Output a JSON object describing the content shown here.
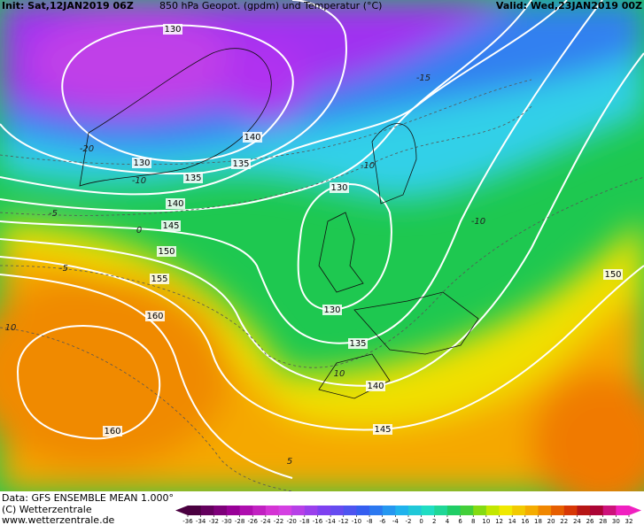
{
  "header": {
    "init": "Init: Sat,12JAN2019 06Z",
    "title": "850 hPa Geopot. (gpdm) und Temperatur (°C)",
    "valid": "Valid: Wed,23JAN2019 00Z"
  },
  "footer": {
    "data": "Data: GFS ENSEMBLE MEAN 1.000°",
    "copyright": "(C) Wetterzentrale",
    "url": "www.wetterzentrale.de"
  },
  "geopotential_labels": [
    130,
    140,
    130,
    135,
    135,
    140,
    145,
    150,
    155,
    160,
    160,
    130,
    130,
    135,
    140,
    145,
    150
  ],
  "temperature_labels": [
    -15,
    -20,
    -10,
    -10,
    -5,
    0,
    -5,
    -10,
    10,
    5,
    10
  ],
  "colorbar_ticks": [
    -36,
    -34,
    -32,
    -30,
    -28,
    -26,
    -24,
    -22,
    -20,
    -18,
    -16,
    -14,
    -12,
    -10,
    -8,
    -6,
    -4,
    -2,
    0,
    2,
    4,
    6,
    8,
    10,
    12,
    14,
    16,
    18,
    20,
    22,
    24,
    26,
    28,
    30,
    32
  ]
}
